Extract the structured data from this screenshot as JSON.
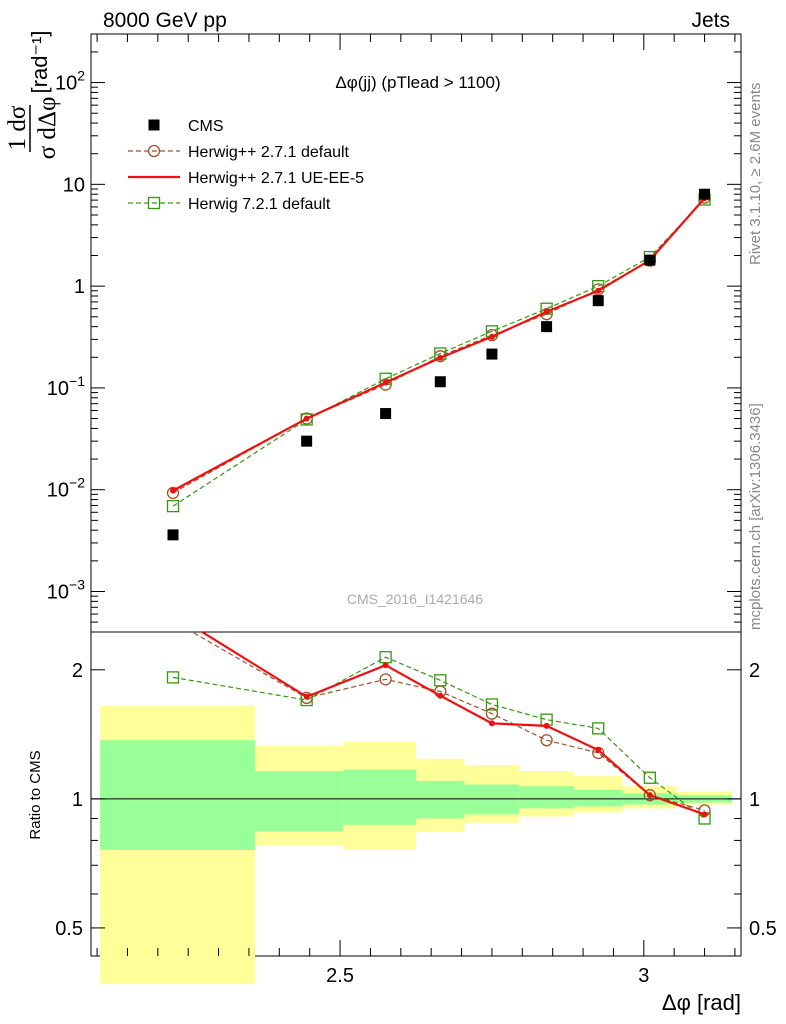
{
  "header": {
    "left": "8000 GeV pp",
    "right": "Jets"
  },
  "side_labels": {
    "rivet": "Rivet 3.1.10, ≥ 2.6M events",
    "mcplots": "mcplots.cern.ch [arXiv:1306.3436]"
  },
  "watermark": "CMS_2016_I1421646",
  "colors": {
    "data": "#000000",
    "herwigpp_default": "#a0522d",
    "herwigpp_ueee5": "#ee1111",
    "herwig7": "#339911",
    "band_inner": "#99ff99",
    "band_outer": "#ffff99"
  },
  "chart_data": [
    {
      "type": "scatter",
      "panel": "main",
      "title": "Δφ(jj) (pTlead >  1100)",
      "ylabel_top": "1 dσ",
      "ylabel_bottom": "σ dΔφ",
      "ylabel_unit": "[rad⁻¹]",
      "yscale": "log",
      "ylim": [
        0.0004,
        300
      ],
      "xlim": [
        2.09,
        3.16
      ],
      "yticks": [
        {
          "value": 0.001,
          "mant": "10",
          "exp": "−3"
        },
        {
          "value": 0.01,
          "mant": "10",
          "exp": "−2"
        },
        {
          "value": 0.1,
          "mant": "10",
          "exp": "−1"
        },
        {
          "value": 1,
          "mant": "1",
          "exp": ""
        },
        {
          "value": 10,
          "mant": "10",
          "exp": ""
        },
        {
          "value": 100,
          "mant": "10",
          "exp": "2"
        }
      ],
      "x": [
        2.225,
        2.445,
        2.575,
        2.665,
        2.75,
        2.84,
        2.925,
        3.01,
        3.1
      ],
      "series": [
        {
          "name": "CMS",
          "key": "data",
          "style": "square",
          "values": [
            0.0036,
            0.03,
            0.056,
            0.115,
            0.215,
            0.4,
            0.72,
            1.8,
            8.0
          ]
        },
        {
          "name": "Herwig++ 2.7.1 default",
          "key": "herwigpp_default",
          "style": "dashed-circle",
          "values": [
            0.0093,
            0.05,
            0.108,
            0.205,
            0.33,
            0.53,
            0.93,
            1.78,
            7.4
          ]
        },
        {
          "name": "Herwig++ 2.7.1 UE-EE-5",
          "key": "herwigpp_ueee5",
          "style": "solid-dot",
          "values": [
            0.0098,
            0.05,
            0.113,
            0.198,
            0.318,
            0.56,
            0.9,
            1.8,
            7.3
          ]
        },
        {
          "name": "Herwig 7.2.1 default",
          "key": "herwig7",
          "style": "dashed-square",
          "values": [
            0.0069,
            0.049,
            0.123,
            0.218,
            0.36,
            0.6,
            1.0,
            1.93,
            7.1
          ]
        }
      ]
    },
    {
      "type": "line",
      "panel": "ratio",
      "ylabel": "Ratio to CMS",
      "yscale": "log",
      "ylim": [
        0.43,
        2.45
      ],
      "xlim": [
        2.09,
        3.16
      ],
      "yticks": [
        0.5,
        1,
        2
      ],
      "xticks": [
        2.5,
        3
      ],
      "xlabel": "Δφ [rad]",
      "reference": 1,
      "bins": [
        [
          2.105,
          2.36
        ],
        [
          2.36,
          2.505
        ],
        [
          2.505,
          2.625
        ],
        [
          2.625,
          2.705
        ],
        [
          2.705,
          2.795
        ],
        [
          2.795,
          2.885
        ],
        [
          2.885,
          2.965
        ],
        [
          2.965,
          3.055
        ],
        [
          3.055,
          3.145
        ]
      ],
      "band_inner": [
        [
          0.76,
          1.37
        ],
        [
          0.84,
          1.16
        ],
        [
          0.87,
          1.17
        ],
        [
          0.9,
          1.1
        ],
        [
          0.92,
          1.08
        ],
        [
          0.95,
          1.07
        ],
        [
          0.96,
          1.05
        ],
        [
          0.97,
          1.03
        ],
        [
          0.98,
          1.02
        ]
      ],
      "band_outer": [
        [
          0.37,
          1.65
        ],
        [
          0.78,
          1.33
        ],
        [
          0.76,
          1.36
        ],
        [
          0.84,
          1.24
        ],
        [
          0.88,
          1.2
        ],
        [
          0.91,
          1.16
        ],
        [
          0.93,
          1.13
        ],
        [
          0.95,
          1.07
        ],
        [
          0.97,
          1.04
        ]
      ],
      "x": [
        2.225,
        2.445,
        2.575,
        2.665,
        2.75,
        2.84,
        2.925,
        3.01,
        3.1
      ],
      "series": [
        {
          "name": "Herwig++ 2.7.1 default",
          "key": "herwigpp_default",
          "style": "dashed-circle",
          "values": [
            2.6,
            1.72,
            1.9,
            1.78,
            1.58,
            1.37,
            1.28,
            1.02,
            0.94
          ]
        },
        {
          "name": "Herwig++ 2.7.1 UE-EE-5",
          "key": "herwigpp_ueee5",
          "style": "solid-dot",
          "values": [
            2.7,
            1.73,
            2.05,
            1.74,
            1.5,
            1.48,
            1.3,
            1.02,
            0.92
          ]
        },
        {
          "name": "Herwig 7.2.1 default",
          "key": "herwig7",
          "style": "dashed-square",
          "values": [
            1.92,
            1.7,
            2.14,
            1.89,
            1.66,
            1.53,
            1.46,
            1.12,
            0.9
          ]
        }
      ]
    }
  ]
}
